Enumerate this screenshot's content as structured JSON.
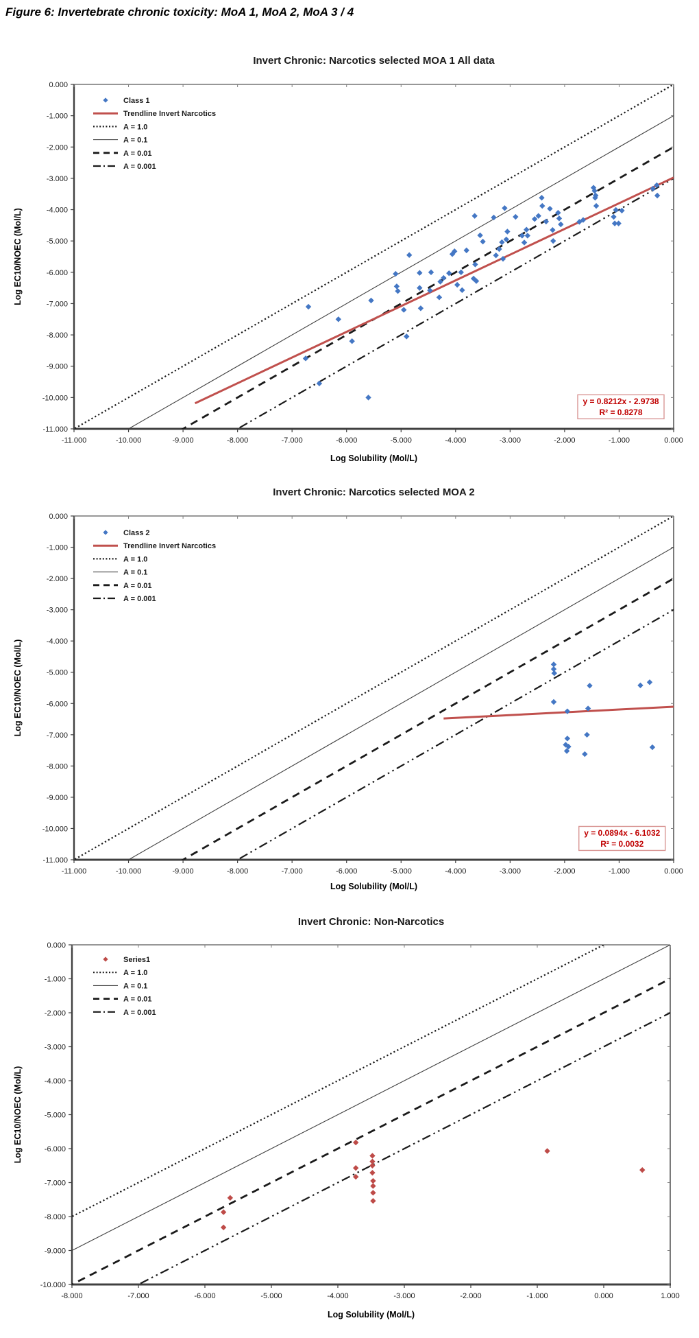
{
  "figure_title": "Figure 6: Invertebrate chronic toxicity: MoA 1, MoA 2, MoA 3 / 4",
  "colors": {
    "class_marker_blue": "#4477C4",
    "series1_marker_red": "#BE4B48",
    "trendline_red": "#C0504D",
    "equation_text_red": "#C00000",
    "equation_border_pink": "#D99694",
    "reference_line_black": "#1A1A1A",
    "axis_gray": "#404040"
  },
  "chart_data": [
    {
      "type": "scatter",
      "title": "Invert Chronic: Narcotics selected MOA 1 All data",
      "xlabel": "Log Solubility (Mol/L)",
      "ylabel": "Log EC10/NOEC (Mol/L)",
      "xlim": [
        -11,
        0
      ],
      "ylim": [
        -11,
        0
      ],
      "xticks": [
        -11,
        -10,
        -9,
        -8,
        -7,
        -6,
        -5,
        -4,
        -3,
        -2,
        -1,
        0
      ],
      "yticks": [
        0,
        -1,
        -2,
        -3,
        -4,
        -5,
        -6,
        -7,
        -8,
        -9,
        -10,
        -11
      ],
      "grid": false,
      "legend_position": "top-left-inside",
      "legend": [
        {
          "label": "Class 1",
          "kind": "marker",
          "color": "#4477C4"
        },
        {
          "label": "Trendline Invert Narcotics",
          "kind": "line",
          "style": "trend",
          "color": "#C0504D"
        },
        {
          "label": "A = 1.0",
          "kind": "line",
          "style": "dotted",
          "color": "#1A1A1A"
        },
        {
          "label": "A = 0.1",
          "kind": "line",
          "style": "thin",
          "color": "#404040"
        },
        {
          "label": "A = 0.01",
          "kind": "line",
          "style": "dashed",
          "color": "#1A1A1A"
        },
        {
          "label": "A = 0.001",
          "kind": "line",
          "style": "dashdotdot",
          "color": "#1A1A1A"
        }
      ],
      "reference_lines": [
        {
          "label": "A = 1.0",
          "equation": "y = x",
          "offset": 0,
          "style": "dotted",
          "color": "#1A1A1A"
        },
        {
          "label": "A = 0.1",
          "equation": "y = x - 1",
          "offset": -1,
          "style": "thin",
          "color": "#404040"
        },
        {
          "label": "A = 0.01",
          "equation": "y = x - 2",
          "offset": -2,
          "style": "dashed",
          "color": "#1A1A1A"
        },
        {
          "label": "A = 0.001",
          "equation": "y = x - 3",
          "offset": -3,
          "style": "dashdotdot",
          "color": "#1A1A1A"
        }
      ],
      "trendline": {
        "slope": 0.8212,
        "intercept": -2.9738,
        "x_start": -8.78,
        "x_end": 0,
        "color": "#C0504D"
      },
      "equation_label": {
        "line1": "y = 0.8212x - 2.9738",
        "line2": "R² = 0.8278"
      },
      "series": [
        {
          "name": "Class 1",
          "marker": "diamond",
          "color": "#4477C4",
          "points": [
            [
              -6.7,
              -7.1
            ],
            [
              -6.75,
              -8.75
            ],
            [
              -6.5,
              -9.55
            ],
            [
              -6.15,
              -7.5
            ],
            [
              -5.9,
              -8.2
            ],
            [
              -5.6,
              -10.0
            ],
            [
              -5.55,
              -6.9
            ],
            [
              -5.1,
              -6.05
            ],
            [
              -5.08,
              -6.45
            ],
            [
              -5.06,
              -6.6
            ],
            [
              -4.95,
              -7.2
            ],
            [
              -4.9,
              -8.05
            ],
            [
              -4.85,
              -5.45
            ],
            [
              -4.66,
              -6.02
            ],
            [
              -4.66,
              -6.5
            ],
            [
              -4.64,
              -7.15
            ],
            [
              -4.47,
              -6.58
            ],
            [
              -4.45,
              -6.0
            ],
            [
              -4.3,
              -6.8
            ],
            [
              -4.28,
              -6.3
            ],
            [
              -4.22,
              -6.18
            ],
            [
              -4.12,
              -6.03
            ],
            [
              -4.06,
              -5.42
            ],
            [
              -4.02,
              -5.33
            ],
            [
              -3.97,
              -6.4
            ],
            [
              -3.9,
              -6.0
            ],
            [
              -3.88,
              -6.57
            ],
            [
              -3.8,
              -5.3
            ],
            [
              -3.67,
              -6.2
            ],
            [
              -3.62,
              -6.28
            ],
            [
              -3.65,
              -4.2
            ],
            [
              -3.64,
              -5.75
            ],
            [
              -3.55,
              -4.82
            ],
            [
              -3.5,
              -5.02
            ],
            [
              -3.3,
              -4.25
            ],
            [
              -3.26,
              -5.46
            ],
            [
              -3.2,
              -5.26
            ],
            [
              -3.15,
              -5.04
            ],
            [
              -3.13,
              -5.57
            ],
            [
              -3.1,
              -3.95
            ],
            [
              -3.07,
              -4.95
            ],
            [
              -3.05,
              -4.7
            ],
            [
              -2.9,
              -4.23
            ],
            [
              -2.78,
              -4.83
            ],
            [
              -2.74,
              -5.05
            ],
            [
              -2.7,
              -4.64
            ],
            [
              -2.68,
              -4.83
            ],
            [
              -2.55,
              -4.3
            ],
            [
              -2.48,
              -4.2
            ],
            [
              -2.42,
              -3.62
            ],
            [
              -2.41,
              -3.88
            ],
            [
              -2.34,
              -4.38
            ],
            [
              -2.27,
              -3.97
            ],
            [
              -2.22,
              -4.65
            ],
            [
              -2.21,
              -5.0
            ],
            [
              -2.12,
              -4.1
            ],
            [
              -2.1,
              -4.28
            ],
            [
              -2.07,
              -4.47
            ],
            [
              -1.73,
              -4.39
            ],
            [
              -1.66,
              -4.33
            ],
            [
              -1.47,
              -3.3
            ],
            [
              -1.45,
              -3.4
            ],
            [
              -1.44,
              -3.62
            ],
            [
              -1.43,
              -3.55
            ],
            [
              -1.42,
              -3.88
            ],
            [
              -1.1,
              -4.23
            ],
            [
              -1.08,
              -4.44
            ],
            [
              -1.06,
              -4.01
            ],
            [
              -1.01,
              -4.44
            ],
            [
              -0.95,
              -4.03
            ],
            [
              -0.38,
              -3.33
            ],
            [
              -0.31,
              -3.22
            ],
            [
              -0.3,
              -3.55
            ]
          ]
        }
      ]
    },
    {
      "type": "scatter",
      "title": "Invert Chronic: Narcotics selected MOA 2",
      "xlabel": "Log Solubility (Mol/L)",
      "ylabel": "Log EC10/NOEC (Mol/L)",
      "xlim": [
        -11,
        0
      ],
      "ylim": [
        -11,
        0
      ],
      "xticks": [
        -11,
        -10,
        -9,
        -8,
        -7,
        -6,
        -5,
        -4,
        -3,
        -2,
        -1,
        0
      ],
      "yticks": [
        0,
        -1,
        -2,
        -3,
        -4,
        -5,
        -6,
        -7,
        -8,
        -9,
        -10,
        -11
      ],
      "grid": false,
      "legend_position": "top-left-inside",
      "legend": [
        {
          "label": "Class 2",
          "kind": "marker",
          "color": "#4477C4"
        },
        {
          "label": "Trendline Invert Narcotics",
          "kind": "line",
          "style": "trend",
          "color": "#C0504D"
        },
        {
          "label": "A = 1.0",
          "kind": "line",
          "style": "dotted",
          "color": "#1A1A1A"
        },
        {
          "label": "A = 0.1",
          "kind": "line",
          "style": "thin",
          "color": "#404040"
        },
        {
          "label": "A = 0.01",
          "kind": "line",
          "style": "dashed",
          "color": "#1A1A1A"
        },
        {
          "label": "A = 0.001",
          "kind": "line",
          "style": "dashdotdot",
          "color": "#1A1A1A"
        }
      ],
      "reference_lines": [
        {
          "label": "A = 1.0",
          "equation": "y = x",
          "offset": 0,
          "style": "dotted",
          "color": "#1A1A1A"
        },
        {
          "label": "A = 0.1",
          "equation": "y = x - 1",
          "offset": -1,
          "style": "thin",
          "color": "#404040"
        },
        {
          "label": "A = 0.01",
          "equation": "y = x - 2",
          "offset": -2,
          "style": "dashed",
          "color": "#1A1A1A"
        },
        {
          "label": "A = 0.001",
          "equation": "y = x - 3",
          "offset": -3,
          "style": "dashdotdot",
          "color": "#1A1A1A"
        }
      ],
      "trendline": {
        "slope": 0.0894,
        "intercept": -6.1032,
        "x_start": -4.22,
        "x_end": 0,
        "color": "#C0504D"
      },
      "equation_label": {
        "line1": "y = 0.0894x - 6.1032",
        "line2": "R² = 0.0032"
      },
      "series": [
        {
          "name": "Class 2",
          "marker": "diamond",
          "color": "#4477C4",
          "points": [
            [
              -2.2,
              -4.75
            ],
            [
              -2.2,
              -4.9
            ],
            [
              -2.19,
              -5.03
            ],
            [
              -2.2,
              -5.95
            ],
            [
              -1.95,
              -6.25
            ],
            [
              -1.57,
              -6.16
            ],
            [
              -1.54,
              -5.43
            ],
            [
              -0.61,
              -5.42
            ],
            [
              -0.44,
              -5.32
            ],
            [
              -1.59,
              -7.0
            ],
            [
              -1.95,
              -7.12
            ],
            [
              -1.98,
              -7.32
            ],
            [
              -1.93,
              -7.38
            ],
            [
              -1.96,
              -7.52
            ],
            [
              -1.63,
              -7.62
            ],
            [
              -0.39,
              -7.4
            ]
          ]
        }
      ]
    },
    {
      "type": "scatter",
      "title": "Invert Chronic: Non-Narcotics",
      "xlabel": "Log Solubility (Mol/L)",
      "ylabel": "Log EC10/NOEC (Mol/L)",
      "xlim": [
        -8,
        1
      ],
      "ylim": [
        -10,
        0
      ],
      "xticks": [
        -8,
        -7,
        -6,
        -5,
        -4,
        -3,
        -2,
        -1,
        0,
        1
      ],
      "yticks": [
        0,
        -1,
        -2,
        -3,
        -4,
        -5,
        -6,
        -7,
        -8,
        -9,
        -10
      ],
      "grid": false,
      "legend_position": "top-left-inside",
      "legend": [
        {
          "label": "Series1",
          "kind": "marker",
          "color": "#BE4B48"
        },
        {
          "label": "A = 1.0",
          "kind": "line",
          "style": "dotted",
          "color": "#1A1A1A"
        },
        {
          "label": "A = 0.1",
          "kind": "line",
          "style": "thin",
          "color": "#404040"
        },
        {
          "label": "A = 0.01",
          "kind": "line",
          "style": "dashed",
          "color": "#1A1A1A"
        },
        {
          "label": "A = 0.001",
          "kind": "line",
          "style": "dashdotdot",
          "color": "#1A1A1A"
        }
      ],
      "reference_lines": [
        {
          "label": "A = 1.0",
          "equation": "y = x",
          "offset": 0,
          "style": "dotted",
          "color": "#1A1A1A"
        },
        {
          "label": "A = 0.1",
          "equation": "y = x - 1",
          "offset": -1,
          "style": "thin",
          "color": "#404040"
        },
        {
          "label": "A = 0.01",
          "equation": "y = x - 2",
          "offset": -2,
          "style": "dashed",
          "color": "#1A1A1A"
        },
        {
          "label": "A = 0.001",
          "equation": "y = x - 3",
          "offset": -3,
          "style": "dashdotdot",
          "color": "#1A1A1A"
        }
      ],
      "series": [
        {
          "name": "Series1",
          "marker": "diamond",
          "color": "#BE4B48",
          "points": [
            [
              -5.62,
              -7.45
            ],
            [
              -5.72,
              -7.87
            ],
            [
              -5.72,
              -8.32
            ],
            [
              -3.73,
              -5.82
            ],
            [
              -3.48,
              -6.21
            ],
            [
              -3.48,
              -6.38
            ],
            [
              -3.48,
              -6.5
            ],
            [
              -3.73,
              -6.57
            ],
            [
              -3.48,
              -6.71
            ],
            [
              -3.73,
              -6.83
            ],
            [
              -3.47,
              -6.95
            ],
            [
              -3.47,
              -7.1
            ],
            [
              -3.47,
              -7.3
            ],
            [
              -3.47,
              -7.54
            ],
            [
              -0.85,
              -6.07
            ],
            [
              0.58,
              -6.63
            ]
          ]
        }
      ]
    }
  ]
}
